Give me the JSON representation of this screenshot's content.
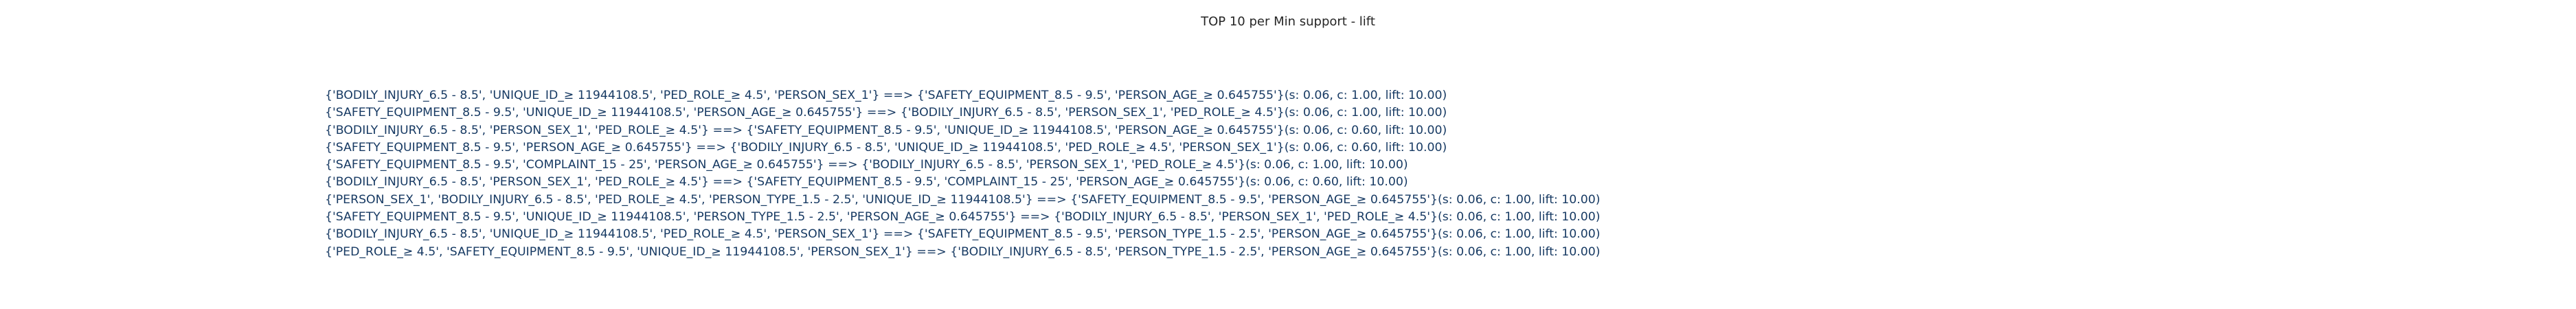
{
  "chart_data": {
    "type": "table",
    "title": "TOP 10 per Min support - lift",
    "rows": [
      "{'BODILY_INJURY_6.5 - 8.5', 'UNIQUE_ID_≥ 11944108.5', 'PED_ROLE_≥ 4.5', 'PERSON_SEX_1'} ==> {'SAFETY_EQUIPMENT_8.5 - 9.5', 'PERSON_AGE_≥ 0.645755'}(s: 0.06, c: 1.00, lift: 10.00)",
      "{'SAFETY_EQUIPMENT_8.5 - 9.5', 'UNIQUE_ID_≥ 11944108.5', 'PERSON_AGE_≥ 0.645755'} ==> {'BODILY_INJURY_6.5 - 8.5', 'PERSON_SEX_1', 'PED_ROLE_≥ 4.5'}(s: 0.06, c: 1.00, lift: 10.00)",
      "{'BODILY_INJURY_6.5 - 8.5', 'PERSON_SEX_1', 'PED_ROLE_≥ 4.5'} ==> {'SAFETY_EQUIPMENT_8.5 - 9.5', 'UNIQUE_ID_≥ 11944108.5', 'PERSON_AGE_≥ 0.645755'}(s: 0.06, c: 0.60, lift: 10.00)",
      "{'SAFETY_EQUIPMENT_8.5 - 9.5', 'PERSON_AGE_≥ 0.645755'} ==> {'BODILY_INJURY_6.5 - 8.5', 'UNIQUE_ID_≥ 11944108.5', 'PED_ROLE_≥ 4.5', 'PERSON_SEX_1'}(s: 0.06, c: 0.60, lift: 10.00)",
      "{'SAFETY_EQUIPMENT_8.5 - 9.5', 'COMPLAINT_15 - 25', 'PERSON_AGE_≥ 0.645755'} ==> {'BODILY_INJURY_6.5 - 8.5', 'PERSON_SEX_1', 'PED_ROLE_≥ 4.5'}(s: 0.06, c: 1.00, lift: 10.00)",
      "{'BODILY_INJURY_6.5 - 8.5', 'PERSON_SEX_1', 'PED_ROLE_≥ 4.5'} ==> {'SAFETY_EQUIPMENT_8.5 - 9.5', 'COMPLAINT_15 - 25', 'PERSON_AGE_≥ 0.645755'}(s: 0.06, c: 0.60, lift: 10.00)",
      "{'PERSON_SEX_1', 'BODILY_INJURY_6.5 - 8.5', 'PED_ROLE_≥ 4.5', 'PERSON_TYPE_1.5 - 2.5', 'UNIQUE_ID_≥ 11944108.5'} ==> {'SAFETY_EQUIPMENT_8.5 - 9.5', 'PERSON_AGE_≥ 0.645755'}(s: 0.06, c: 1.00, lift: 10.00)",
      "{'SAFETY_EQUIPMENT_8.5 - 9.5', 'UNIQUE_ID_≥ 11944108.5', 'PERSON_TYPE_1.5 - 2.5', 'PERSON_AGE_≥ 0.645755'} ==> {'BODILY_INJURY_6.5 - 8.5', 'PERSON_SEX_1', 'PED_ROLE_≥ 4.5'}(s: 0.06, c: 1.00, lift: 10.00)",
      "{'BODILY_INJURY_6.5 - 8.5', 'UNIQUE_ID_≥ 11944108.5', 'PED_ROLE_≥ 4.5', 'PERSON_SEX_1'} ==> {'SAFETY_EQUIPMENT_8.5 - 9.5', 'PERSON_TYPE_1.5 - 2.5', 'PERSON_AGE_≥ 0.645755'}(s: 0.06, c: 1.00, lift: 10.00)",
      "{'PED_ROLE_≥ 4.5', 'SAFETY_EQUIPMENT_8.5 - 9.5', 'UNIQUE_ID_≥ 11944108.5', 'PERSON_SEX_1'} ==> {'BODILY_INJURY_6.5 - 8.5', 'PERSON_TYPE_1.5 - 2.5', 'PERSON_AGE_≥ 0.645755'}(s: 0.06, c: 1.00, lift: 10.00)"
    ]
  }
}
